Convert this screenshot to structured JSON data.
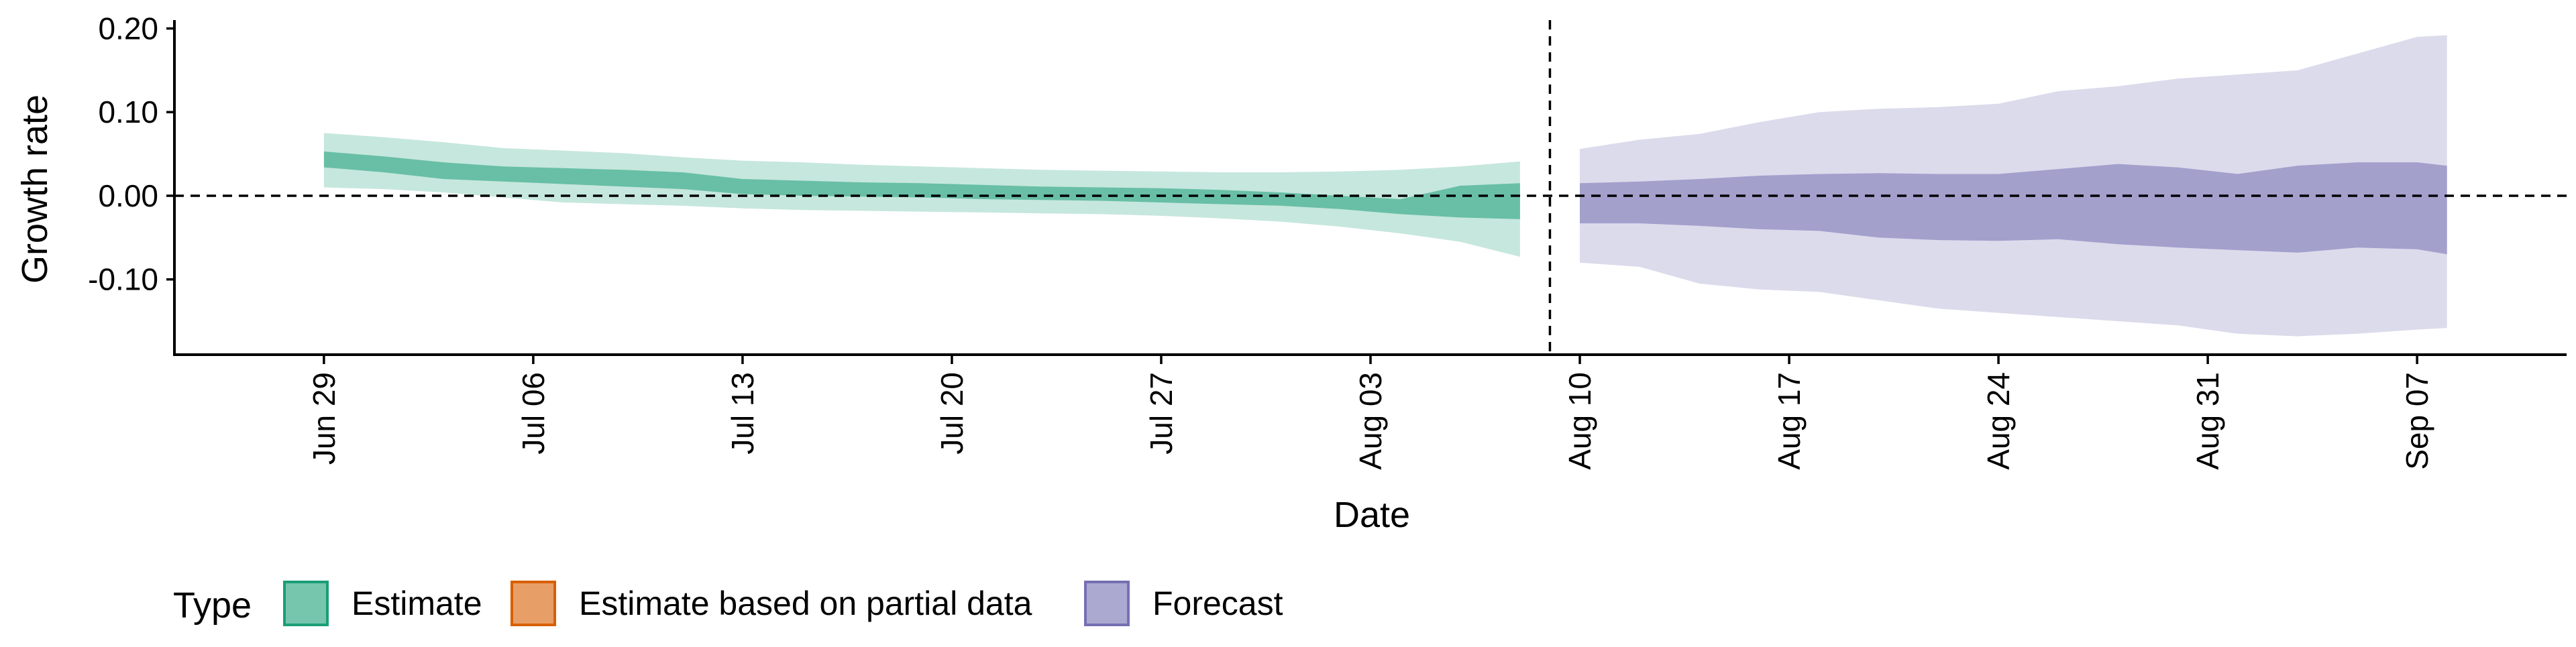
{
  "chart_data": {
    "type": "area",
    "xlabel": "Date",
    "ylabel": "Growth rate",
    "ylim": [
      -0.19,
      0.21
    ],
    "yticks": [
      0.2,
      0.1,
      0.0,
      -0.1
    ],
    "ytick_labels": [
      "0.20",
      "0.10",
      "0.00",
      "-0.10"
    ],
    "xlim": [
      "2023-06-24",
      "2023-09-12"
    ],
    "xticks": [
      "2023-06-29",
      "2023-07-06",
      "2023-07-13",
      "2023-07-20",
      "2023-07-27",
      "2023-08-03",
      "2023-08-10",
      "2023-08-17",
      "2023-08-24",
      "2023-08-31",
      "2023-09-07"
    ],
    "xtick_labels": [
      "Jun 29",
      "Jul 06",
      "Jul 13",
      "Jul 20",
      "Jul 27",
      "Aug 03",
      "Aug 10",
      "Aug 17",
      "Aug 24",
      "Aug 31",
      "Sep 07"
    ],
    "reference_lines": {
      "horizontal_y": 0.0,
      "vertical_x": "2023-08-09"
    },
    "legend": {
      "title": "Type",
      "placement": "bottom-left",
      "items": [
        {
          "label": "Estimate",
          "color": "#1b9e77"
        },
        {
          "label": "Estimate based on partial data",
          "color": "#d95f02"
        },
        {
          "label": "Forecast",
          "color": "#7570b3"
        }
      ]
    },
    "series": [
      {
        "name": "Estimate",
        "color": "#1b9e77",
        "x": [
          "2023-06-29",
          "2023-07-01",
          "2023-07-03",
          "2023-07-05",
          "2023-07-07",
          "2023-07-09",
          "2023-07-11",
          "2023-07-13",
          "2023-07-15",
          "2023-07-17",
          "2023-07-19",
          "2023-07-21",
          "2023-07-23",
          "2023-07-25",
          "2023-07-27",
          "2023-07-29",
          "2023-07-31",
          "2023-08-02",
          "2023-08-04",
          "2023-08-06",
          "2023-08-08"
        ],
        "lower90": [
          0.01,
          0.008,
          0.004,
          -0.002,
          -0.008,
          -0.01,
          -0.012,
          -0.015,
          -0.017,
          -0.018,
          -0.019,
          -0.02,
          -0.021,
          -0.022,
          -0.024,
          -0.027,
          -0.031,
          -0.037,
          -0.045,
          -0.055,
          -0.073
        ],
        "upper90": [
          0.075,
          0.07,
          0.064,
          0.057,
          0.054,
          0.051,
          0.046,
          0.042,
          0.04,
          0.037,
          0.035,
          0.033,
          0.031,
          0.03,
          0.029,
          0.028,
          0.028,
          0.029,
          0.031,
          0.035,
          0.041
        ],
        "lower50": [
          0.034,
          0.028,
          0.02,
          0.017,
          0.014,
          0.011,
          0.008,
          0.002,
          0.0,
          -0.001,
          -0.002,
          -0.004,
          -0.005,
          -0.006,
          -0.008,
          -0.01,
          -0.012,
          -0.016,
          -0.022,
          -0.026,
          -0.028
        ],
        "upper50": [
          0.053,
          0.047,
          0.04,
          0.035,
          0.033,
          0.031,
          0.028,
          0.02,
          0.018,
          0.016,
          0.015,
          0.013,
          0.011,
          0.01,
          0.009,
          0.007,
          0.004,
          0.0,
          -0.004,
          0.012,
          0.015
        ]
      },
      {
        "name": "Forecast",
        "color": "#7570b3",
        "x": [
          "2023-08-10",
          "2023-08-12",
          "2023-08-14",
          "2023-08-16",
          "2023-08-18",
          "2023-08-20",
          "2023-08-22",
          "2023-08-24",
          "2023-08-26",
          "2023-08-28",
          "2023-08-30",
          "2023-09-01",
          "2023-09-03",
          "2023-09-05",
          "2023-09-07",
          "2023-09-08"
        ],
        "lower90": [
          -0.08,
          -0.085,
          -0.105,
          -0.112,
          -0.115,
          -0.125,
          -0.135,
          -0.14,
          -0.145,
          -0.15,
          -0.155,
          -0.165,
          -0.168,
          -0.165,
          -0.16,
          -0.158
        ],
        "upper90": [
          0.056,
          0.067,
          0.074,
          0.088,
          0.1,
          0.104,
          0.106,
          0.11,
          0.125,
          0.131,
          0.14,
          0.145,
          0.15,
          0.17,
          0.19,
          0.192
        ],
        "lower50": [
          -0.033,
          -0.033,
          -0.036,
          -0.04,
          -0.042,
          -0.05,
          -0.053,
          -0.054,
          -0.052,
          -0.058,
          -0.062,
          -0.065,
          -0.068,
          -0.062,
          -0.064,
          -0.07
        ],
        "upper50": [
          0.015,
          0.017,
          0.02,
          0.024,
          0.026,
          0.027,
          0.026,
          0.026,
          0.032,
          0.038,
          0.034,
          0.026,
          0.036,
          0.04,
          0.04,
          0.036
        ]
      }
    ]
  }
}
